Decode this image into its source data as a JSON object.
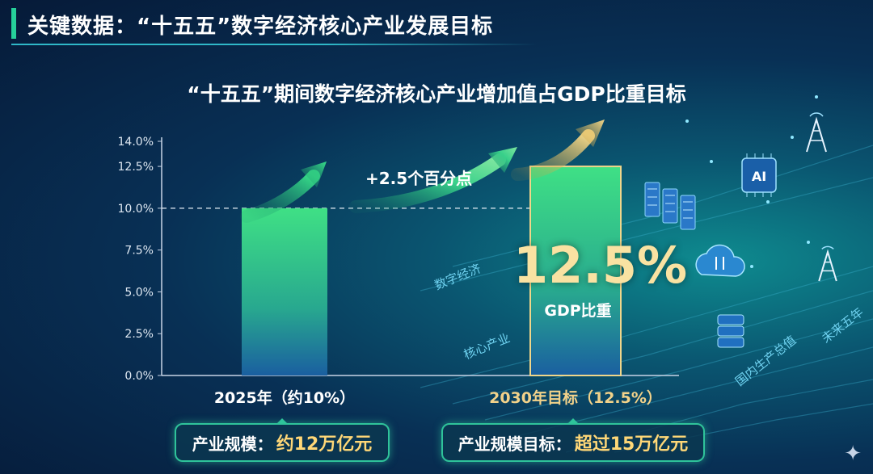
{
  "header": {
    "title": "关键数据：“十五五”数字经济核心产业发展目标"
  },
  "chart_data": {
    "type": "bar",
    "title": "“十五五”期间数字经济核心产业增加值占GDP比重目标",
    "categories": [
      "2025年（约10%）",
      "2030年目标（12.5%）"
    ],
    "values": [
      10.0,
      12.5
    ],
    "ylim": [
      0,
      14
    ],
    "y_ticks": [
      "0.0%",
      "2.5%",
      "5.0%",
      "7.5%",
      "10.0%",
      "12.5%",
      "14.0%"
    ],
    "y_tick_values": [
      0,
      2.5,
      5,
      7.5,
      10,
      12.5,
      14
    ],
    "reference_line": 10.0,
    "annotation_increase": "+2.5个百分点",
    "highlight_value": "12.5%",
    "highlight_label": "GDP比重",
    "grid": false,
    "colors": {
      "bar_top": "#3fe085",
      "bar_bottom": "#1a5fa0",
      "target_border": "#f0d68a",
      "axis": "#c7d4e6"
    }
  },
  "scale_boxes": [
    {
      "label": "产业规模：",
      "value": "约12万亿元"
    },
    {
      "label": "产业规模目标：",
      "value": "超过15万亿元"
    }
  ],
  "decor": {
    "tag_digital": "数字经济",
    "tag_core": "核心产业",
    "tag_gdp": "国内生产总值",
    "tag_future": "未来五年",
    "icon_ai": "AI"
  },
  "icons": [
    "server-icon",
    "cloud-icon",
    "ai-chip-icon",
    "tower-icon",
    "database-icon",
    "sparkle-icon"
  ]
}
